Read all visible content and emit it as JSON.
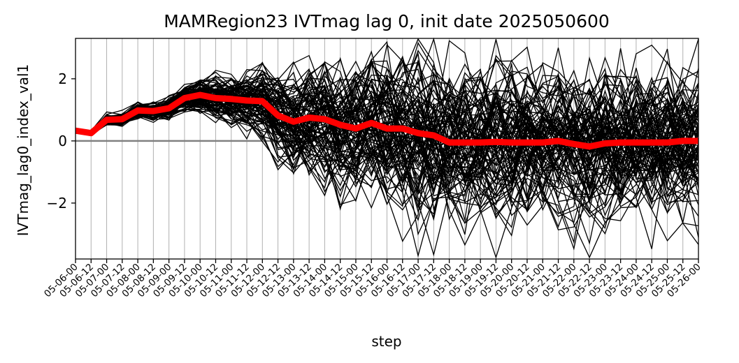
{
  "chart_data": {
    "type": "line",
    "title": "MAMRegion23 IVTmag lag 0, init date 2025050600",
    "xlabel": "step",
    "ylabel": "IVTmag_lag0_index_val1",
    "x": [
      "05-06-00",
      "05-06-12",
      "05-07-00",
      "05-07-12",
      "05-08-00",
      "05-08-12",
      "05-09-00",
      "05-09-12",
      "05-10-00",
      "05-10-12",
      "05-11-00",
      "05-11-12",
      "05-12-00",
      "05-12-12",
      "05-13-00",
      "05-13-12",
      "05-14-00",
      "05-14-12",
      "05-15-00",
      "05-15-12",
      "05-16-00",
      "05-16-12",
      "05-17-00",
      "05-17-12",
      "05-18-00",
      "05-18-12",
      "05-19-00",
      "05-19-12",
      "05-20-00",
      "05-20-12",
      "05-21-00",
      "05-21-12",
      "05-22-00",
      "05-22-12",
      "05-23-00",
      "05-23-12",
      "05-24-00",
      "05-24-12",
      "05-25-00",
      "05-25-12",
      "05-26-00"
    ],
    "ylim": [
      -3.8,
      3.3
    ],
    "yticks": [
      -2,
      0,
      2
    ],
    "ytick_labels": [
      "−2",
      "0",
      "2"
    ],
    "grid": "vertical",
    "zero_line_color": "#808080",
    "ensemble_color": "#000000",
    "mean_color": "#ff0000",
    "ensemble_members": 100,
    "series_mean": {
      "values": [
        0.33,
        0.25,
        0.68,
        0.7,
        0.98,
        0.96,
        1.05,
        1.38,
        1.48,
        1.38,
        1.35,
        1.3,
        1.28,
        0.82,
        0.62,
        0.75,
        0.7,
        0.52,
        0.4,
        0.58,
        0.4,
        0.4,
        0.25,
        0.18,
        -0.05,
        -0.05,
        -0.05,
        -0.03,
        -0.05,
        -0.05,
        -0.05,
        0.0,
        -0.1,
        -0.18,
        -0.08,
        -0.05,
        -0.05,
        -0.05,
        -0.05,
        0.0,
        0.0
      ]
    },
    "ensemble_spread": [
      0.03,
      0.04,
      0.08,
      0.1,
      0.12,
      0.14,
      0.18,
      0.22,
      0.26,
      0.3,
      0.38,
      0.48,
      0.58,
      0.7,
      0.8,
      0.9,
      1.0,
      1.1,
      1.18,
      1.25,
      1.3,
      1.3,
      1.32,
      1.32,
      1.3,
      1.3,
      1.28,
      1.28,
      1.26,
      1.25,
      1.25,
      1.25,
      1.24,
      1.24,
      1.22,
      1.22,
      1.2,
      1.2,
      1.2,
      1.2,
      1.2
    ]
  }
}
